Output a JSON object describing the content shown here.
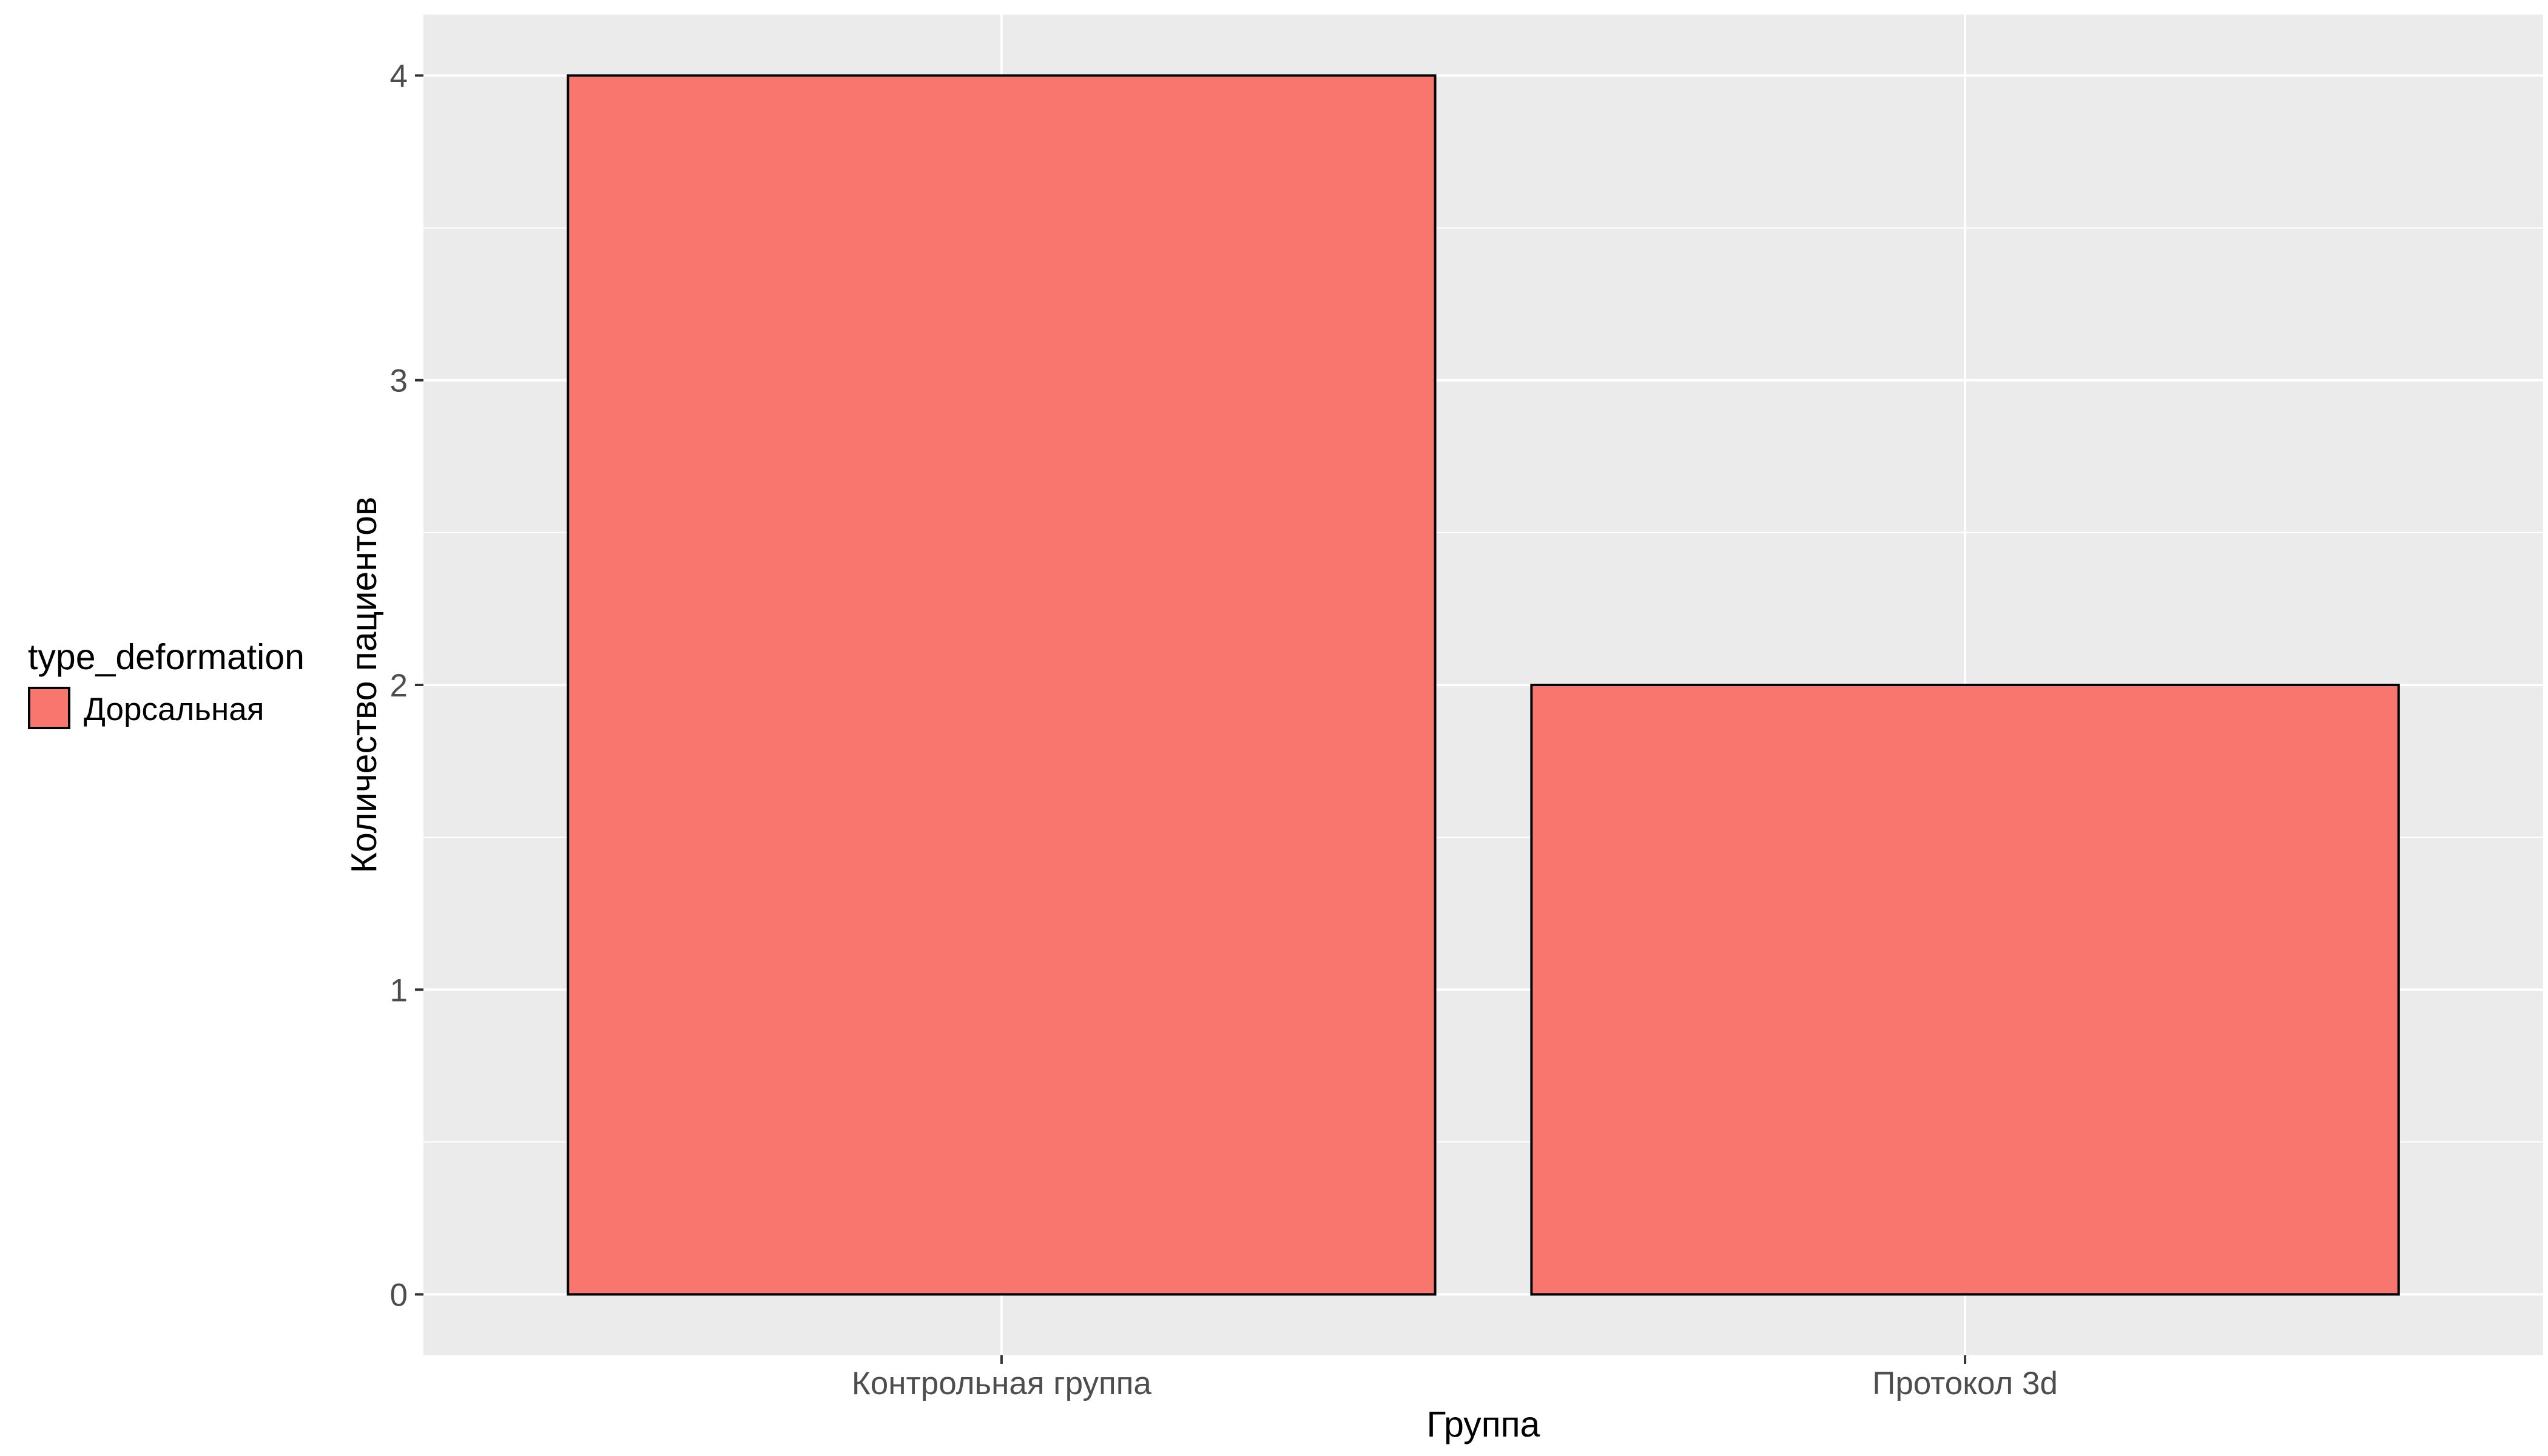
{
  "chart_data": {
    "type": "bar",
    "categories": [
      "Контрольная группа",
      "Протокол 3d"
    ],
    "series": [
      {
        "name": "Дорсальная",
        "values": [
          4,
          2
        ],
        "color": "#F8766D"
      }
    ],
    "xlabel": "Группа",
    "ylabel": "Количество пациентов",
    "ylim": [
      -0.2,
      4.2
    ],
    "yticks": [
      0,
      1,
      2,
      3,
      4
    ],
    "grid": true,
    "legend": {
      "title": "type_deformation",
      "position": "left"
    },
    "colors": {
      "panel": "#EBEBEB",
      "grid": "#FFFFFF",
      "bar_outline": "#000000",
      "tick_text": "#4D4D4D"
    }
  }
}
